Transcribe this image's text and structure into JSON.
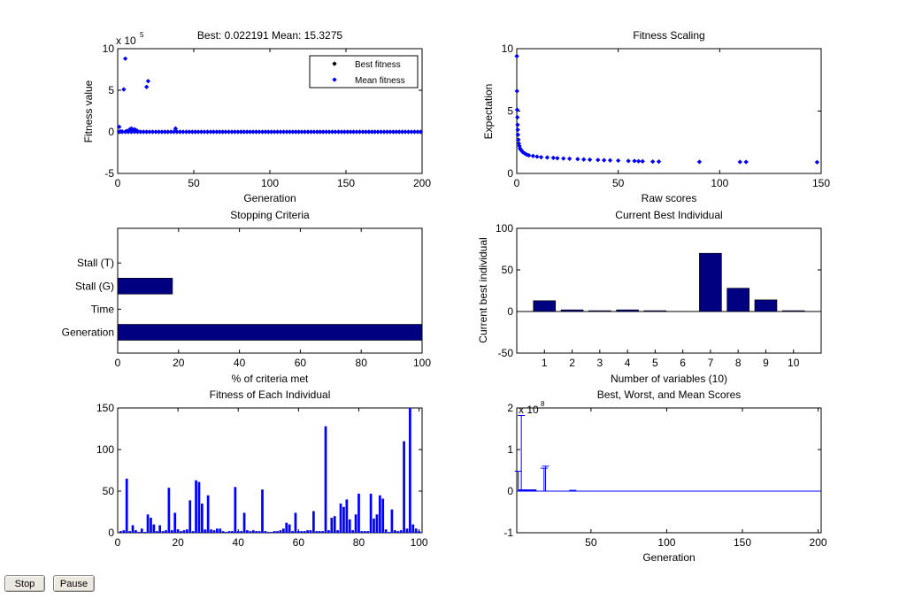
{
  "controls": {
    "stop_label": "Stop",
    "pause_label": "Pause"
  },
  "colors": {
    "navy": "#000080",
    "blue": "#0000ff",
    "mean": "#0000ff",
    "best": "#000000"
  },
  "chart_data": [
    {
      "id": "plot-fitness-value",
      "type": "scatter",
      "title": "Best: 0.022191 Mean: 15.3275",
      "xlabel": "Generation",
      "ylabel": "Fitness value",
      "exponent_label": "x 10",
      "exponent_power": "5",
      "xlim": [
        0,
        200
      ],
      "ylim": [
        -5,
        10
      ],
      "xticks": [
        0,
        50,
        100,
        150,
        200
      ],
      "yticks": [
        -5,
        0,
        5,
        10
      ],
      "legend": {
        "position": "top-right"
      },
      "series": [
        {
          "name": "Best fitness",
          "color": "#000000",
          "y_constant": 2.22e-07
        },
        {
          "name": "Mean fitness",
          "color": "#0000ff",
          "points": [
            [
              1,
              0.6
            ],
            [
              2,
              0.05
            ],
            [
              3,
              0.03
            ],
            [
              4,
              5.1
            ],
            [
              5,
              8.8
            ],
            [
              6,
              0.1
            ],
            [
              7,
              0.05
            ],
            [
              8,
              0.3
            ],
            [
              9,
              0.4
            ],
            [
              10,
              0.2
            ],
            [
              11,
              0.3
            ],
            [
              12,
              0.2
            ],
            [
              13,
              0.1
            ],
            [
              19,
              5.4
            ],
            [
              20,
              6.1
            ],
            [
              38,
              0.4
            ]
          ],
          "baseline_y": 0.0
        }
      ]
    },
    {
      "id": "plot-fitness-scaling",
      "type": "scatter",
      "title": "Fitness Scaling",
      "xlabel": "Raw scores",
      "ylabel": "Expectation",
      "xlim": [
        0,
        150
      ],
      "ylim": [
        0,
        10
      ],
      "xticks": [
        0,
        50,
        100,
        150
      ],
      "yticks": [
        0,
        5,
        10
      ],
      "points": [
        [
          0.02,
          9.4
        ],
        [
          0.1,
          6.6
        ],
        [
          0.2,
          5.1
        ],
        [
          0.3,
          4.5
        ],
        [
          0.4,
          3.9
        ],
        [
          0.5,
          3.5
        ],
        [
          0.6,
          3.1
        ],
        [
          0.8,
          2.7
        ],
        [
          1,
          2.4
        ],
        [
          1.3,
          2.2
        ],
        [
          1.6,
          2.0
        ],
        [
          2,
          1.9
        ],
        [
          2.5,
          1.8
        ],
        [
          3,
          1.7
        ],
        [
          4,
          1.6
        ],
        [
          5,
          1.5
        ],
        [
          6,
          1.45
        ],
        [
          8,
          1.4
        ],
        [
          10,
          1.35
        ],
        [
          12,
          1.3
        ],
        [
          15,
          1.28
        ],
        [
          18,
          1.25
        ],
        [
          20,
          1.22
        ],
        [
          23,
          1.2
        ],
        [
          26,
          1.18
        ],
        [
          30,
          1.15
        ],
        [
          33,
          1.12
        ],
        [
          36,
          1.1
        ],
        [
          40,
          1.08
        ],
        [
          43,
          1.06
        ],
        [
          46,
          1.05
        ],
        [
          50,
          1.03
        ],
        [
          55,
          1.0
        ],
        [
          58,
          1.0
        ],
        [
          60,
          0.98
        ],
        [
          62,
          0.97
        ],
        [
          67,
          0.95
        ],
        [
          70,
          0.95
        ],
        [
          90,
          0.93
        ],
        [
          110,
          0.92
        ],
        [
          113,
          0.92
        ],
        [
          148,
          0.9
        ]
      ]
    },
    {
      "id": "plot-stopping-criteria",
      "type": "bar",
      "orientation": "horizontal",
      "title": "Stopping Criteria",
      "xlabel": "% of criteria met",
      "ylabel": "",
      "xlim": [
        0,
        100
      ],
      "xticks": [
        0,
        20,
        40,
        60,
        80,
        100
      ],
      "categories": [
        "Generation",
        "Time",
        "Stall (G)",
        "Stall (T)"
      ],
      "values": [
        100,
        0,
        18,
        0
      ]
    },
    {
      "id": "plot-current-best",
      "type": "bar",
      "title": "Current Best Individual",
      "xlabel": "Number of variables (10)",
      "ylabel": "Current best individual",
      "ylim": [
        -50,
        100
      ],
      "yticks": [
        -50,
        0,
        50,
        100
      ],
      "categories": [
        "1",
        "2",
        "3",
        "4",
        "5",
        "6",
        "7",
        "8",
        "9",
        "10"
      ],
      "values": [
        13,
        2,
        1,
        2,
        1,
        0,
        70,
        28,
        14,
        1
      ]
    },
    {
      "id": "plot-fitness-individual",
      "type": "bar",
      "title": "Fitness of Each Individual",
      "xlabel": "",
      "ylabel": "",
      "xlim": [
        0,
        101
      ],
      "ylim": [
        0,
        150
      ],
      "xticks": [
        0,
        20,
        40,
        60,
        80,
        100
      ],
      "yticks": [
        0,
        50,
        100,
        150
      ],
      "values": [
        2,
        3,
        65,
        2,
        9,
        3,
        1,
        5,
        1,
        22,
        18,
        10,
        2,
        9,
        2,
        3,
        54,
        3,
        24,
        4,
        2,
        3,
        4,
        39,
        2,
        63,
        61,
        35,
        4,
        45,
        4,
        3,
        5,
        5,
        2,
        1,
        2,
        2,
        55,
        2,
        2,
        24,
        3,
        2,
        3,
        2,
        2,
        52,
        2,
        1,
        1,
        2,
        2,
        3,
        5,
        12,
        10,
        2,
        24,
        2,
        2,
        2,
        3,
        3,
        26,
        2,
        2,
        2,
        128,
        3,
        18,
        20,
        3,
        35,
        31,
        40,
        16,
        3,
        22,
        47,
        2,
        2,
        2,
        47,
        17,
        22,
        45,
        41,
        4,
        1,
        28,
        3,
        2,
        3,
        110,
        5,
        150,
        10,
        5,
        2
      ]
    },
    {
      "id": "plot-best-worst-mean",
      "type": "line",
      "title": "Best, Worst, and Mean Scores",
      "xlabel": "Generation",
      "ylabel": "",
      "exponent_label": "x 10",
      "exponent_power": "8",
      "xlim": [
        1,
        202
      ],
      "ylim": [
        -1,
        2
      ],
      "xticks": [
        50,
        100,
        150,
        200
      ],
      "yticks": [
        -1,
        0,
        1,
        2
      ],
      "spikes": [
        [
          4,
          1.82
        ],
        [
          2,
          0.48
        ],
        [
          19,
          0.55
        ],
        [
          20,
          0.6
        ],
        [
          38,
          0.02
        ]
      ],
      "baseline_y": 0.0
    }
  ]
}
